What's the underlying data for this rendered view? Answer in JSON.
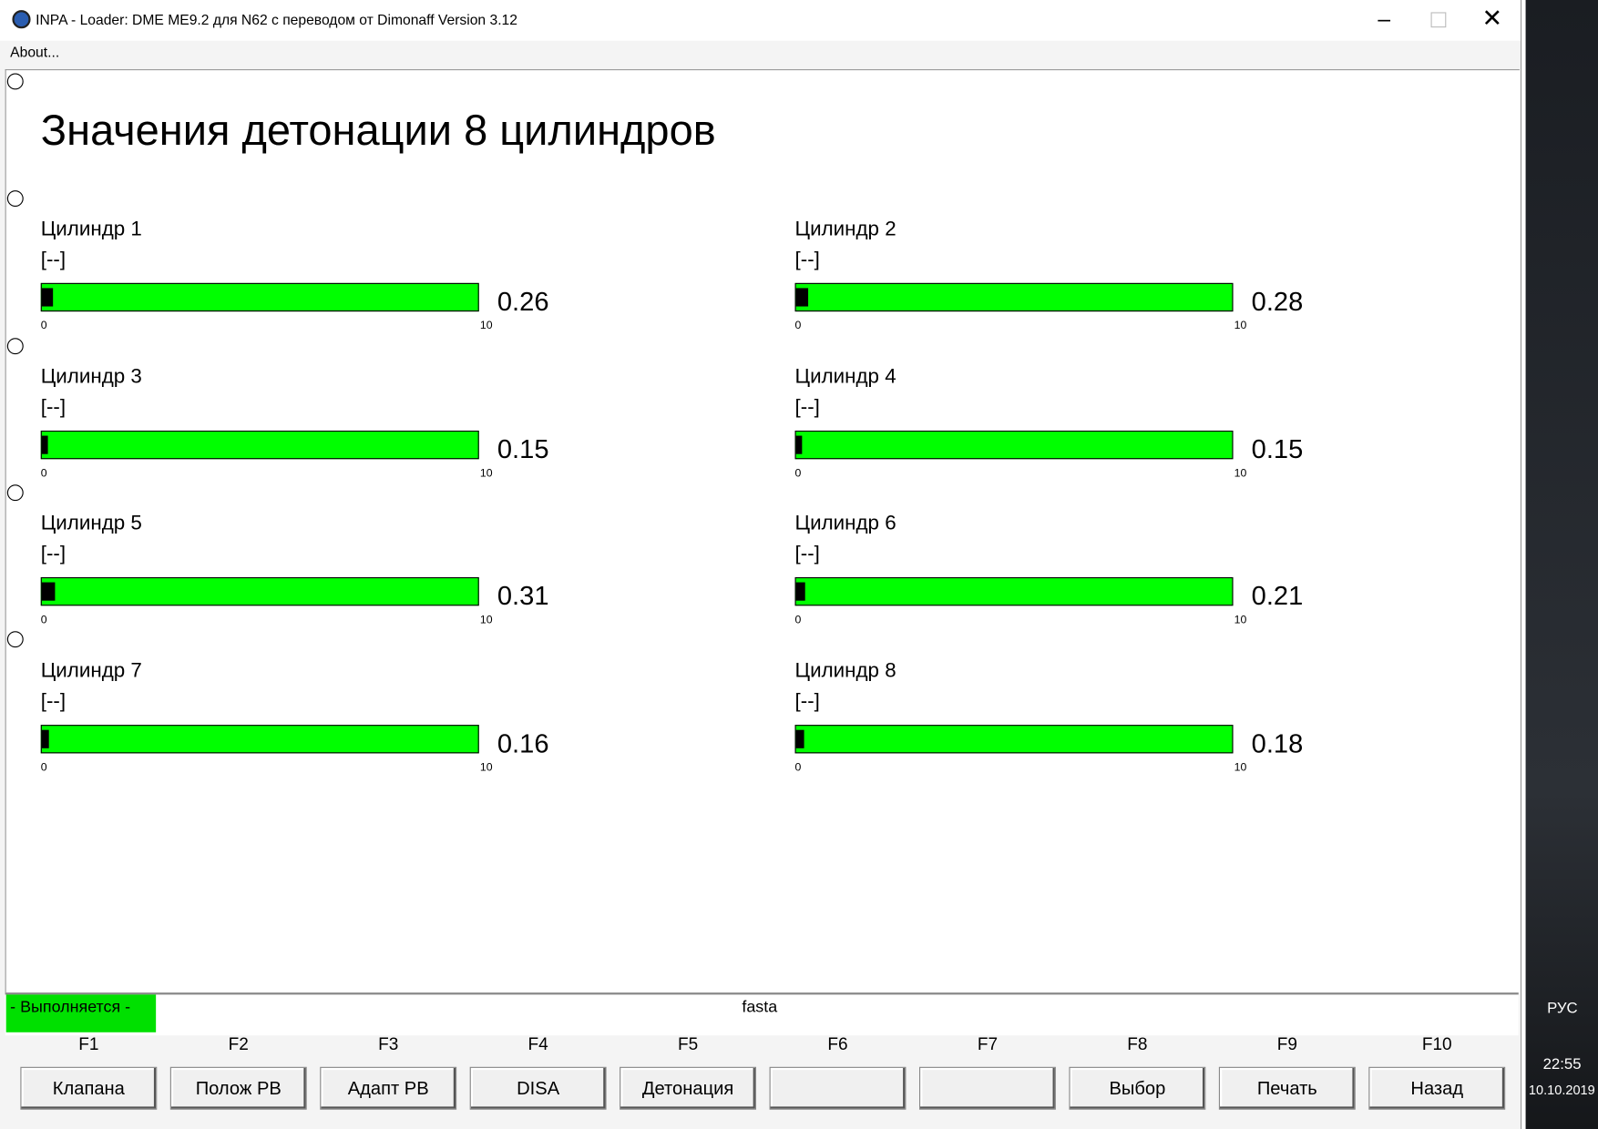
{
  "window": {
    "title": "INPA - Loader:  DME ME9.2 для N62 с переводом от Dimonaff Version 3.12",
    "menu": "About..."
  },
  "heading": "Значения детонации 8 цилиндров",
  "cylinders": [
    {
      "label": "Цилиндр 1",
      "unit": "[--]",
      "value": 0.26,
      "min": 0,
      "max": 10
    },
    {
      "label": "Цилиндр 2",
      "unit": "[--]",
      "value": 0.28,
      "min": 0,
      "max": 10
    },
    {
      "label": "Цилиндр 3",
      "unit": "[--]",
      "value": 0.15,
      "min": 0,
      "max": 10
    },
    {
      "label": "Цилиндр 4",
      "unit": "[--]",
      "value": 0.15,
      "min": 0,
      "max": 10
    },
    {
      "label": "Цилиндр 5",
      "unit": "[--]",
      "value": 0.31,
      "min": 0,
      "max": 10
    },
    {
      "label": "Цилиндр 6",
      "unit": "[--]",
      "value": 0.21,
      "min": 0,
      "max": 10
    },
    {
      "label": "Цилиндр 7",
      "unit": "[--]",
      "value": 0.16,
      "min": 0,
      "max": 10
    },
    {
      "label": "Цилиндр 8",
      "unit": "[--]",
      "value": 0.18,
      "min": 0,
      "max": 10
    }
  ],
  "status": {
    "state": "- Выполняется -",
    "job": "fasta"
  },
  "fkeys": [
    {
      "key": "F1",
      "button": "Клапана"
    },
    {
      "key": "F2",
      "button": "Полож РВ"
    },
    {
      "key": "F3",
      "button": "Адапт РВ"
    },
    {
      "key": "F4",
      "button": "DISA"
    },
    {
      "key": "F5",
      "button": "Детонация"
    },
    {
      "key": "F6"
    },
    {
      "key": "F7"
    },
    {
      "key": "F8",
      "button": "Выбор"
    },
    {
      "key": "F9",
      "button": "Печать"
    },
    {
      "key": "F10",
      "button": "Назад"
    }
  ],
  "taskbar": {
    "language": "РУС",
    "time": "22:55",
    "date": "10.10.2019"
  }
}
